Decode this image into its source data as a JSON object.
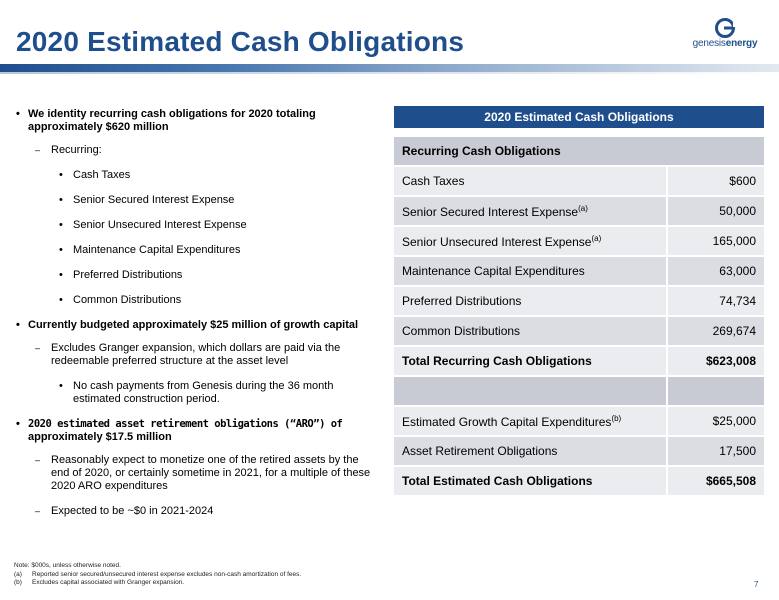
{
  "header": {
    "title": "2020 Estimated Cash Obligations",
    "logo_prefix": "genesis",
    "logo_suffix": "energy",
    "brand_color": "#1f4e8c"
  },
  "bullets": {
    "b1": "We identity recurring cash obligations for 2020 totaling approximately $620 million",
    "recurring": "Recurring:",
    "items": [
      "Cash Taxes",
      "Senior Secured Interest Expense",
      "Senior Unsecured Interest Expense",
      "Maintenance Capital Expenditures",
      "Preferred Distributions",
      "Common Distributions"
    ],
    "b2": "Currently budgeted approximately $25 million of growth capital",
    "excl": "Excludes Granger expansion, which dollars are paid via the redeemable preferred structure at the asset level",
    "nocash": "No cash payments from Genesis during the 36 month estimated construction period.",
    "b3_line1": "2020 estimated asset retirement obligations (“ARO”) of",
    "b3_line2": "approximately $17.5 million",
    "monetize": "Reasonably expect to monetize one of the retired assets by the end of 2020, or certainly sometime in 2021, for a multiple of these 2020 ARO expenditures",
    "expected": "Expected to be ~$0 in 2021-2024"
  },
  "table": {
    "title": "2020 Estimated Cash Obligations",
    "section": "Recurring Cash Obligations",
    "rows": [
      {
        "label": "Cash Taxes",
        "sup": "",
        "value": "$600"
      },
      {
        "label": "Senior Secured Interest Expense",
        "sup": "(a)",
        "value": "50,000"
      },
      {
        "label": "Senior Unsecured Interest Expense",
        "sup": "(a)",
        "value": "165,000"
      },
      {
        "label": "Maintenance Capital Expenditures",
        "sup": "",
        "value": "63,000"
      },
      {
        "label": "Preferred Distributions",
        "sup": "",
        "value": "74,734"
      },
      {
        "label": "Common Distributions",
        "sup": "",
        "value": "269,674"
      }
    ],
    "total_recurring": {
      "label": "Total Recurring Cash Obligations",
      "value": "$623,008"
    },
    "growth": {
      "label": "Estimated Growth Capital Expenditures",
      "sup": "(b)",
      "value": "$25,000"
    },
    "aro": {
      "label": "Asset Retirement Obligations",
      "value": "17,500"
    },
    "total": {
      "label": "Total Estimated Cash Obligations",
      "value": "$665,508"
    }
  },
  "notes": {
    "main": "Note: $000s, unless otherwise noted.",
    "a_key": "(a)",
    "a": "Reported senior secured/unsecured interest expense excludes non-cash amortization of fees.",
    "b_key": "(b)",
    "b": "Excludes capital associated with Granger expansion."
  },
  "page_number": "7"
}
